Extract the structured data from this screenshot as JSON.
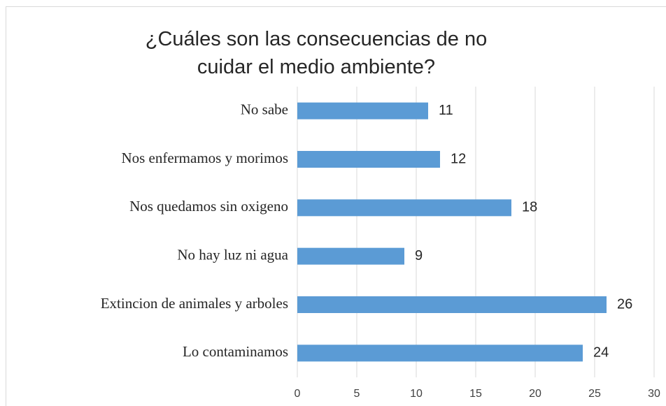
{
  "chart_data": {
    "type": "bar",
    "orientation": "horizontal",
    "title": "¿Cuáles son las consecuencias de no cuidar el medio ambiente?",
    "categories": [
      "No sabe",
      "Nos enfermamos y morimos",
      "Nos quedamos sin oxigeno",
      "No hay luz ni agua",
      "Extincion de animales y arboles",
      "Lo contaminamos"
    ],
    "values": [
      11,
      12,
      18,
      9,
      26,
      24
    ],
    "color": "#5b9bd5",
    "xlim": [
      0,
      30
    ],
    "xticks": [
      0,
      5,
      10,
      15,
      20,
      25,
      30
    ],
    "grid": true
  }
}
